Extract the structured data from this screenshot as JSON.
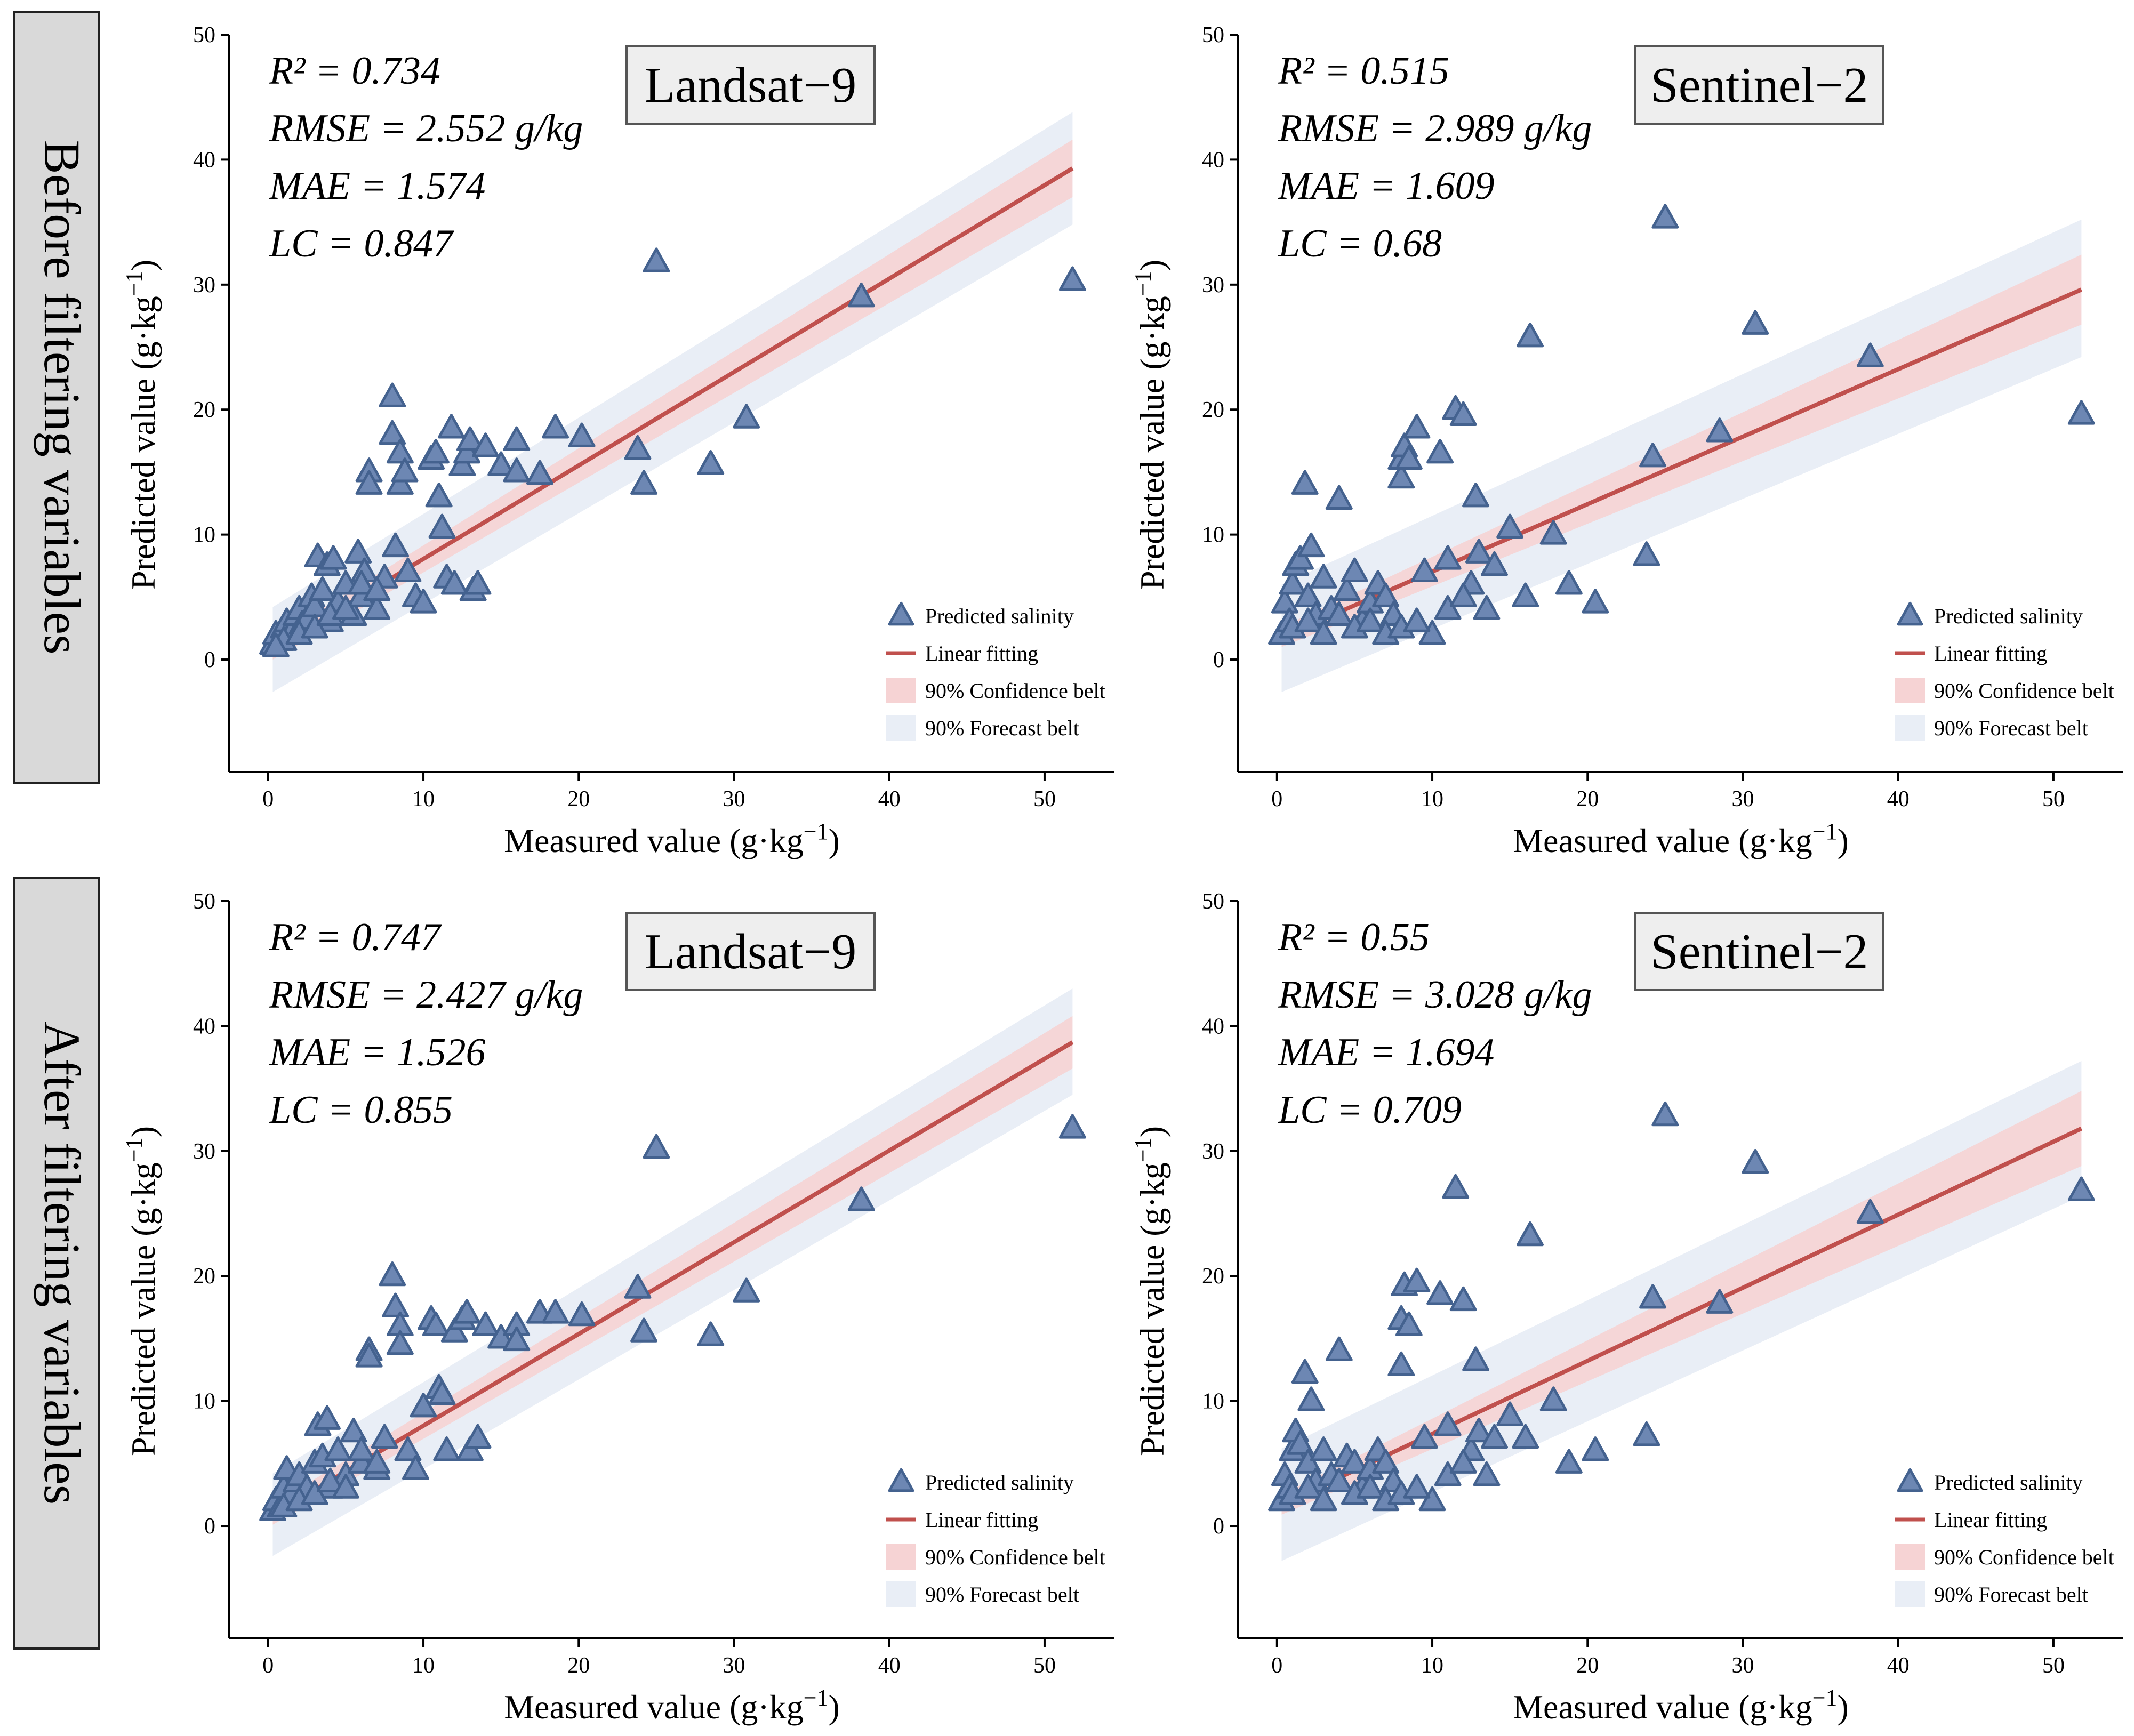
{
  "rows": [
    {
      "label": "Before filtering variables"
    },
    {
      "label": "After filtering variables"
    }
  ],
  "colors": {
    "marker_fill": "#6d87b3",
    "marker_stroke": "#44628f",
    "fit_line": "#c0504d",
    "confidence": "#f6d3d4",
    "forecast": "#e9eef6",
    "label_box_fill": "#eeeeee",
    "row_label_fill": "#d9d9d9"
  },
  "chart_data": [
    {
      "type": "scatter",
      "id": "before-landsat",
      "sensor": "Landsat−9",
      "row": "Before filtering variables",
      "xlabel": "Measured value (g·kg⁻¹)",
      "ylabel": "Predicted value (g·kg⁻¹)",
      "xlim": [
        -2.5,
        54.5
      ],
      "ylim": [
        -9,
        50
      ],
      "xticks": [
        0,
        10,
        20,
        30,
        40,
        50
      ],
      "yticks": [
        0,
        10,
        20,
        30,
        40,
        50
      ],
      "stats": [
        "R² = 0.734",
        "RMSE = 2.552 g/kg",
        "MAE = 1.574",
        "LC = 0.847"
      ],
      "legend": [
        "Predicted salinity",
        "Linear fitting",
        "90% Confidence belt",
        "90% Forecast belt"
      ],
      "fit": {
        "x": [
          0.3,
          51.8
        ],
        "y": [
          0.8,
          39.3
        ]
      },
      "confidence_band": {
        "x": [
          0.3,
          51.8
        ],
        "lower": [
          0.0,
          37.0
        ],
        "upper": [
          1.6,
          41.6
        ]
      },
      "forecast_band": {
        "x": [
          0.3,
          51.8
        ],
        "lower": [
          -2.6,
          34.8
        ],
        "upper": [
          4.2,
          43.8
        ]
      },
      "points": [
        [
          0.3,
          1.2
        ],
        [
          0.5,
          2.0
        ],
        [
          0.8,
          1.5
        ],
        [
          1.0,
          2.5
        ],
        [
          1.2,
          3.0
        ],
        [
          1.5,
          2.2
        ],
        [
          1.8,
          3.5
        ],
        [
          2.0,
          4.0
        ],
        [
          2.2,
          2.8
        ],
        [
          2.5,
          3.2
        ],
        [
          2.8,
          5.0
        ],
        [
          3.0,
          4.2
        ],
        [
          3.2,
          8.2
        ],
        [
          3.5,
          5.5
        ],
        [
          3.8,
          7.5
        ],
        [
          4.0,
          3.0
        ],
        [
          4.2,
          8.0
        ],
        [
          4.5,
          4.5
        ],
        [
          5.0,
          6.0
        ],
        [
          5.5,
          3.5
        ],
        [
          5.8,
          8.5
        ],
        [
          6.0,
          5.0
        ],
        [
          6.2,
          7.0
        ],
        [
          6.5,
          15.0
        ],
        [
          6.5,
          14.0
        ],
        [
          7.0,
          4.0
        ],
        [
          7.5,
          6.5
        ],
        [
          8.0,
          21.0
        ],
        [
          8.0,
          18.0
        ],
        [
          8.2,
          9.0
        ],
        [
          8.5,
          16.5
        ],
        [
          8.5,
          14.0
        ],
        [
          8.8,
          15.0
        ],
        [
          9.0,
          7.0
        ],
        [
          9.5,
          5.0
        ],
        [
          10.0,
          4.5
        ],
        [
          10.5,
          16.0
        ],
        [
          10.8,
          16.5
        ],
        [
          11.0,
          13.0
        ],
        [
          11.2,
          10.5
        ],
        [
          11.5,
          6.5
        ],
        [
          11.8,
          18.5
        ],
        [
          12.0,
          6.0
        ],
        [
          12.5,
          15.5
        ],
        [
          12.8,
          16.5
        ],
        [
          13.0,
          17.5
        ],
        [
          13.2,
          5.5
        ],
        [
          13.5,
          6.0
        ],
        [
          14.0,
          17.0
        ],
        [
          15.0,
          15.5
        ],
        [
          16.0,
          17.5
        ],
        [
          16.0,
          15.0
        ],
        [
          17.5,
          14.8
        ],
        [
          18.5,
          18.5
        ],
        [
          20.2,
          17.8
        ],
        [
          23.8,
          16.8
        ],
        [
          24.2,
          14.0
        ],
        [
          25.0,
          31.8
        ],
        [
          28.5,
          15.6
        ],
        [
          30.8,
          19.3
        ],
        [
          38.2,
          29.0
        ],
        [
          51.8,
          30.3
        ],
        [
          1.0,
          1.5
        ],
        [
          2.0,
          2.0
        ],
        [
          3.0,
          2.5
        ],
        [
          4.0,
          3.5
        ],
        [
          5.0,
          4.0
        ],
        [
          6.0,
          6.0
        ],
        [
          7.0,
          5.5
        ],
        [
          0.5,
          1.0
        ]
      ]
    },
    {
      "type": "scatter",
      "id": "before-sentinel",
      "sensor": "Sentinel−2",
      "row": "Before filtering variables",
      "xlabel": "Measured value (g·kg⁻¹)",
      "ylabel": "Predicted value (g·kg⁻¹)",
      "xlim": [
        -2.5,
        54.5
      ],
      "ylim": [
        -9,
        50
      ],
      "xticks": [
        0,
        10,
        20,
        30,
        40,
        50
      ],
      "yticks": [
        0,
        10,
        20,
        30,
        40,
        50
      ],
      "stats": [
        "R² = 0.515",
        "RMSE = 2.989 g/kg",
        "MAE = 1.609",
        "LC = 0.68"
      ],
      "legend": [
        "Predicted salinity",
        "Linear fitting",
        "90% Confidence belt",
        "90% Forecast belt"
      ],
      "fit": {
        "x": [
          0.3,
          51.8
        ],
        "y": [
          1.8,
          29.6
        ]
      },
      "confidence_band": {
        "x": [
          0.3,
          51.8
        ],
        "lower": [
          1.0,
          26.8
        ],
        "upper": [
          2.6,
          32.4
        ]
      },
      "forecast_band": {
        "x": [
          0.3,
          51.8
        ],
        "lower": [
          -2.6,
          24.2
        ],
        "upper": [
          6.0,
          35.2
        ]
      },
      "points": [
        [
          0.3,
          2.0
        ],
        [
          0.5,
          4.5
        ],
        [
          0.8,
          3.0
        ],
        [
          1.0,
          6.0
        ],
        [
          1.2,
          7.5
        ],
        [
          1.5,
          8.0
        ],
        [
          1.8,
          14.0
        ],
        [
          2.0,
          5.0
        ],
        [
          2.2,
          9.0
        ],
        [
          2.5,
          3.5
        ],
        [
          3.0,
          6.5
        ],
        [
          3.5,
          4.0
        ],
        [
          4.0,
          12.8
        ],
        [
          4.5,
          5.5
        ],
        [
          5.0,
          7.0
        ],
        [
          5.5,
          3.0
        ],
        [
          6.0,
          4.5
        ],
        [
          6.5,
          6.0
        ],
        [
          7.0,
          5.0
        ],
        [
          7.5,
          3.5
        ],
        [
          8.0,
          16.0
        ],
        [
          8.0,
          14.5
        ],
        [
          8.2,
          17.0
        ],
        [
          8.5,
          16.0
        ],
        [
          9.0,
          18.5
        ],
        [
          9.5,
          7.0
        ],
        [
          10.0,
          2.0
        ],
        [
          10.5,
          16.5
        ],
        [
          11.0,
          8.0
        ],
        [
          11.5,
          20.0
        ],
        [
          12.0,
          19.5
        ],
        [
          12.5,
          6.0
        ],
        [
          12.8,
          13.0
        ],
        [
          13.0,
          8.5
        ],
        [
          13.5,
          4.0
        ],
        [
          14.0,
          7.5
        ],
        [
          15.0,
          10.5
        ],
        [
          16.0,
          5.0
        ],
        [
          16.3,
          25.8
        ],
        [
          17.8,
          10.0
        ],
        [
          18.8,
          6.0
        ],
        [
          20.5,
          4.5
        ],
        [
          23.8,
          8.3
        ],
        [
          24.2,
          16.2
        ],
        [
          25.0,
          35.3
        ],
        [
          28.5,
          18.2
        ],
        [
          30.8,
          26.8
        ],
        [
          38.2,
          24.2
        ],
        [
          51.8,
          19.6
        ],
        [
          1.0,
          2.5
        ],
        [
          2.0,
          3.0
        ],
        [
          3.0,
          2.0
        ],
        [
          4.0,
          3.5
        ],
        [
          5.0,
          2.5
        ],
        [
          6.0,
          3.0
        ],
        [
          7.0,
          2.0
        ],
        [
          8.0,
          2.5
        ],
        [
          9.0,
          3.0
        ],
        [
          11.0,
          4.0
        ],
        [
          12.0,
          5.0
        ]
      ]
    },
    {
      "type": "scatter",
      "id": "after-landsat",
      "sensor": "Landsat−9",
      "row": "After filtering variables",
      "xlabel": "Measured value (g·kg⁻¹)",
      "ylabel": "Predicted value (g·kg⁻¹)",
      "xlim": [
        -2.5,
        54.5
      ],
      "ylim": [
        -9,
        50
      ],
      "xticks": [
        0,
        10,
        20,
        30,
        40,
        50
      ],
      "yticks": [
        0,
        10,
        20,
        30,
        40,
        50
      ],
      "stats": [
        "R² = 0.747",
        "RMSE = 2.427 g/kg",
        "MAE = 1.526",
        "LC = 0.855"
      ],
      "legend": [
        "Predicted salinity",
        "Linear fitting",
        "90% Confidence belt",
        "90% Forecast belt"
      ],
      "fit": {
        "x": [
          0.3,
          51.8
        ],
        "y": [
          0.9,
          38.7
        ]
      },
      "confidence_band": {
        "x": [
          0.3,
          51.8
        ],
        "lower": [
          0.1,
          36.6
        ],
        "upper": [
          1.7,
          40.8
        ]
      },
      "forecast_band": {
        "x": [
          0.3,
          51.8
        ],
        "lower": [
          -2.4,
          34.5
        ],
        "upper": [
          4.2,
          43.0
        ]
      },
      "points": [
        [
          0.3,
          1.2
        ],
        [
          0.5,
          2.0
        ],
        [
          0.8,
          1.5
        ],
        [
          1.0,
          3.0
        ],
        [
          1.2,
          4.5
        ],
        [
          1.5,
          2.5
        ],
        [
          1.8,
          3.5
        ],
        [
          2.0,
          4.0
        ],
        [
          2.5,
          3.0
        ],
        [
          3.0,
          5.0
        ],
        [
          3.2,
          8.0
        ],
        [
          3.5,
          5.5
        ],
        [
          3.8,
          8.5
        ],
        [
          4.0,
          3.0
        ],
        [
          4.5,
          6.0
        ],
        [
          5.0,
          4.0
        ],
        [
          5.5,
          7.5
        ],
        [
          6.0,
          5.0
        ],
        [
          6.5,
          14.0
        ],
        [
          6.5,
          13.5
        ],
        [
          7.0,
          4.5
        ],
        [
          7.5,
          7.0
        ],
        [
          8.0,
          20.0
        ],
        [
          8.2,
          17.5
        ],
        [
          8.5,
          16.0
        ],
        [
          8.5,
          14.5
        ],
        [
          9.0,
          6.0
        ],
        [
          9.5,
          4.5
        ],
        [
          10.0,
          9.5
        ],
        [
          10.5,
          16.5
        ],
        [
          10.8,
          16.0
        ],
        [
          11.0,
          11.0
        ],
        [
          11.2,
          10.5
        ],
        [
          11.5,
          6.0
        ],
        [
          12.0,
          15.5
        ],
        [
          12.5,
          16.5
        ],
        [
          12.8,
          17.0
        ],
        [
          13.0,
          6.0
        ],
        [
          13.5,
          7.0
        ],
        [
          14.0,
          16.0
        ],
        [
          15.0,
          15.0
        ],
        [
          16.0,
          16.0
        ],
        [
          16.0,
          14.8
        ],
        [
          17.5,
          17.0
        ],
        [
          18.5,
          17.0
        ],
        [
          20.2,
          16.8
        ],
        [
          23.8,
          19.0
        ],
        [
          24.2,
          15.5
        ],
        [
          25.0,
          30.2
        ],
        [
          28.5,
          15.2
        ],
        [
          30.8,
          18.7
        ],
        [
          38.2,
          26.0
        ],
        [
          51.8,
          31.8
        ],
        [
          1.0,
          1.5
        ],
        [
          2.0,
          2.0
        ],
        [
          3.0,
          2.5
        ],
        [
          4.0,
          3.5
        ],
        [
          5.0,
          3.0
        ],
        [
          6.0,
          6.0
        ],
        [
          7.0,
          5.0
        ]
      ]
    },
    {
      "type": "scatter",
      "id": "after-sentinel",
      "sensor": "Sentinel−2",
      "row": "After filtering variables",
      "xlabel": "Measured value (g·kg⁻¹)",
      "ylabel": "Predicted value (g·kg⁻¹)",
      "xlim": [
        -2.5,
        54.5
      ],
      "ylim": [
        -9,
        50
      ],
      "xticks": [
        0,
        10,
        20,
        30,
        40,
        50
      ],
      "yticks": [
        0,
        10,
        20,
        30,
        40,
        50
      ],
      "stats": [
        "R² = 0.55",
        "RMSE = 3.028 g/kg",
        "MAE = 1.694",
        "LC = 0.709"
      ],
      "legend": [
        "Predicted salinity",
        "Linear fitting",
        "90% Confidence belt",
        "90% Forecast belt"
      ],
      "fit": {
        "x": [
          0.3,
          51.8
        ],
        "y": [
          1.7,
          31.8
        ]
      },
      "confidence_band": {
        "x": [
          0.3,
          51.8
        ],
        "lower": [
          0.9,
          28.8
        ],
        "upper": [
          2.5,
          34.8
        ]
      },
      "forecast_band": {
        "x": [
          0.3,
          51.8
        ],
        "lower": [
          -2.8,
          26.4
        ],
        "upper": [
          6.2,
          37.2
        ]
      },
      "points": [
        [
          0.3,
          2.0
        ],
        [
          0.5,
          4.0
        ],
        [
          0.8,
          3.0
        ],
        [
          1.0,
          6.0
        ],
        [
          1.2,
          7.5
        ],
        [
          1.5,
          6.5
        ],
        [
          1.8,
          12.2
        ],
        [
          2.0,
          5.0
        ],
        [
          2.2,
          10.0
        ],
        [
          2.5,
          3.5
        ],
        [
          3.0,
          6.0
        ],
        [
          3.5,
          4.0
        ],
        [
          4.0,
          14.0
        ],
        [
          4.5,
          5.5
        ],
        [
          5.0,
          5.0
        ],
        [
          5.5,
          3.0
        ],
        [
          6.0,
          4.5
        ],
        [
          6.5,
          6.0
        ],
        [
          7.0,
          5.0
        ],
        [
          7.5,
          3.5
        ],
        [
          8.0,
          16.5
        ],
        [
          8.0,
          12.8
        ],
        [
          8.2,
          19.2
        ],
        [
          8.5,
          16.0
        ],
        [
          9.0,
          19.5
        ],
        [
          9.5,
          7.0
        ],
        [
          10.0,
          2.0
        ],
        [
          10.5,
          18.5
        ],
        [
          11.0,
          8.0
        ],
        [
          11.5,
          27.0
        ],
        [
          12.0,
          18.0
        ],
        [
          12.5,
          6.0
        ],
        [
          12.8,
          13.2
        ],
        [
          13.0,
          7.5
        ],
        [
          13.5,
          4.0
        ],
        [
          14.0,
          7.0
        ],
        [
          15.0,
          8.8
        ],
        [
          16.0,
          7.0
        ],
        [
          16.3,
          23.2
        ],
        [
          17.8,
          10.0
        ],
        [
          18.8,
          5.0
        ],
        [
          20.5,
          6.0
        ],
        [
          23.8,
          7.2
        ],
        [
          24.2,
          18.2
        ],
        [
          25.0,
          32.8
        ],
        [
          28.5,
          17.8
        ],
        [
          30.8,
          29.0
        ],
        [
          38.2,
          25.0
        ],
        [
          51.8,
          26.8
        ],
        [
          1.0,
          2.5
        ],
        [
          2.0,
          3.0
        ],
        [
          3.0,
          2.0
        ],
        [
          4.0,
          3.5
        ],
        [
          5.0,
          2.5
        ],
        [
          6.0,
          3.0
        ],
        [
          7.0,
          2.0
        ],
        [
          8.0,
          2.5
        ],
        [
          9.0,
          3.0
        ],
        [
          11.0,
          4.0
        ],
        [
          12.0,
          5.0
        ]
      ]
    }
  ]
}
